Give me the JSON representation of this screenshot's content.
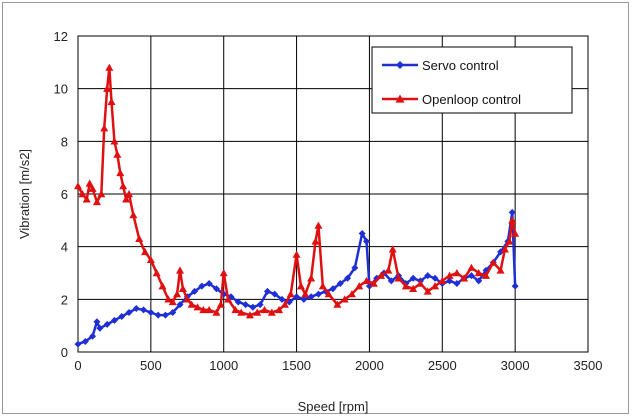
{
  "chart_data": {
    "type": "line",
    "xlabel": "Speed [rpm]",
    "ylabel": "Vibration [m/s2]",
    "xlim": [
      0,
      3500
    ],
    "ylim": [
      0,
      12
    ],
    "x_ticks": [
      "0",
      "500",
      "1000",
      "1500",
      "2000",
      "2500",
      "3000",
      "3500"
    ],
    "y_ticks": [
      "0",
      "2",
      "4",
      "6",
      "8",
      "10",
      "12"
    ],
    "grid": true,
    "legend_position": "top-right",
    "series": [
      {
        "name": "Servo control",
        "color": "#1f2fd6",
        "marker": "diamond",
        "x": [
          0,
          50,
          100,
          130,
          150,
          200,
          250,
          300,
          350,
          400,
          450,
          500,
          550,
          600,
          650,
          700,
          750,
          800,
          850,
          900,
          950,
          1000,
          1050,
          1100,
          1150,
          1200,
          1250,
          1300,
          1350,
          1400,
          1450,
          1500,
          1550,
          1600,
          1650,
          1700,
          1750,
          1800,
          1850,
          1900,
          1950,
          1980,
          2000,
          2050,
          2100,
          2150,
          2200,
          2250,
          2300,
          2350,
          2400,
          2450,
          2500,
          2550,
          2600,
          2650,
          2700,
          2750,
          2800,
          2850,
          2900,
          2950,
          2980,
          3000
        ],
        "values": [
          0.3,
          0.4,
          0.6,
          1.15,
          0.9,
          1.05,
          1.2,
          1.35,
          1.5,
          1.65,
          1.6,
          1.5,
          1.4,
          1.4,
          1.5,
          1.8,
          2.1,
          2.3,
          2.5,
          2.6,
          2.4,
          2.2,
          2.1,
          1.9,
          1.8,
          1.7,
          1.8,
          2.3,
          2.2,
          2.0,
          1.9,
          2.1,
          2.0,
          2.1,
          2.2,
          2.3,
          2.4,
          2.6,
          2.8,
          3.2,
          4.5,
          4.2,
          2.5,
          2.8,
          3.0,
          2.7,
          2.9,
          2.6,
          2.8,
          2.7,
          2.9,
          2.8,
          2.6,
          2.7,
          2.6,
          2.8,
          2.9,
          2.7,
          3.1,
          3.4,
          3.8,
          4.2,
          5.3,
          2.5
        ]
      },
      {
        "name": "Openloop control",
        "color": "#e01010",
        "marker": "triangle",
        "x": [
          0,
          30,
          60,
          80,
          100,
          130,
          160,
          180,
          200,
          215,
          230,
          250,
          270,
          290,
          310,
          330,
          350,
          380,
          420,
          460,
          500,
          540,
          580,
          620,
          650,
          680,
          700,
          720,
          750,
          780,
          820,
          860,
          900,
          950,
          980,
          1000,
          1030,
          1080,
          1120,
          1180,
          1230,
          1280,
          1330,
          1380,
          1420,
          1460,
          1500,
          1530,
          1560,
          1600,
          1630,
          1650,
          1680,
          1720,
          1780,
          1830,
          1880,
          1930,
          1980,
          2030,
          2080,
          2130,
          2160,
          2200,
          2250,
          2300,
          2350,
          2400,
          2450,
          2500,
          2550,
          2600,
          2650,
          2700,
          2750,
          2800,
          2850,
          2900,
          2930,
          2960,
          2980,
          3000
        ],
        "values": [
          6.3,
          6.0,
          5.8,
          6.4,
          6.2,
          5.7,
          6.0,
          8.5,
          10.0,
          10.8,
          9.5,
          8.0,
          7.5,
          6.8,
          6.3,
          5.8,
          6.0,
          5.2,
          4.3,
          3.8,
          3.5,
          3.0,
          2.5,
          2.0,
          1.9,
          2.2,
          3.1,
          2.4,
          2.0,
          1.8,
          1.7,
          1.6,
          1.6,
          1.5,
          1.8,
          3.0,
          2.0,
          1.6,
          1.5,
          1.4,
          1.5,
          1.6,
          1.5,
          1.6,
          1.8,
          2.2,
          3.7,
          2.5,
          2.2,
          2.8,
          4.2,
          4.8,
          2.5,
          2.2,
          1.8,
          2.0,
          2.2,
          2.5,
          2.7,
          2.6,
          2.9,
          3.1,
          3.9,
          2.8,
          2.5,
          2.4,
          2.6,
          2.3,
          2.5,
          2.7,
          2.9,
          3.0,
          2.8,
          3.2,
          3.0,
          2.9,
          3.4,
          3.1,
          3.9,
          4.2,
          5.0,
          4.5
        ]
      }
    ]
  }
}
